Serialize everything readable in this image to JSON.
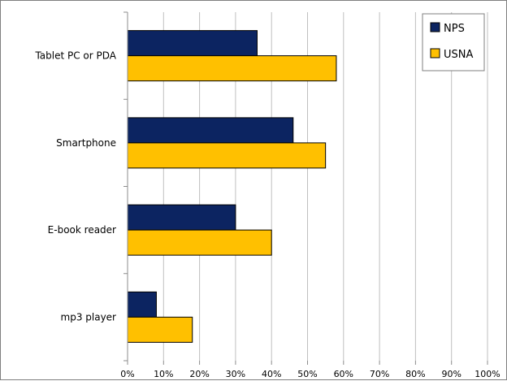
{
  "chart_data": {
    "type": "bar",
    "orientation": "horizontal",
    "categories": [
      "Tablet PC or PDA",
      "Smartphone",
      "E-book reader",
      "mp3 player"
    ],
    "series": [
      {
        "name": "NPS",
        "color": "#0c2461",
        "values": [
          36,
          46,
          30,
          8
        ]
      },
      {
        "name": "USNA",
        "color": "#ffc000",
        "values": [
          58,
          55,
          40,
          18
        ]
      }
    ],
    "x_ticks": [
      "0%",
      "10%",
      "20%",
      "30%",
      "40%",
      "50%",
      "60%",
      "70%",
      "80%",
      "90%",
      "100%"
    ],
    "xlim": [
      0,
      100
    ],
    "grid": true,
    "legend_position": "top-right"
  }
}
